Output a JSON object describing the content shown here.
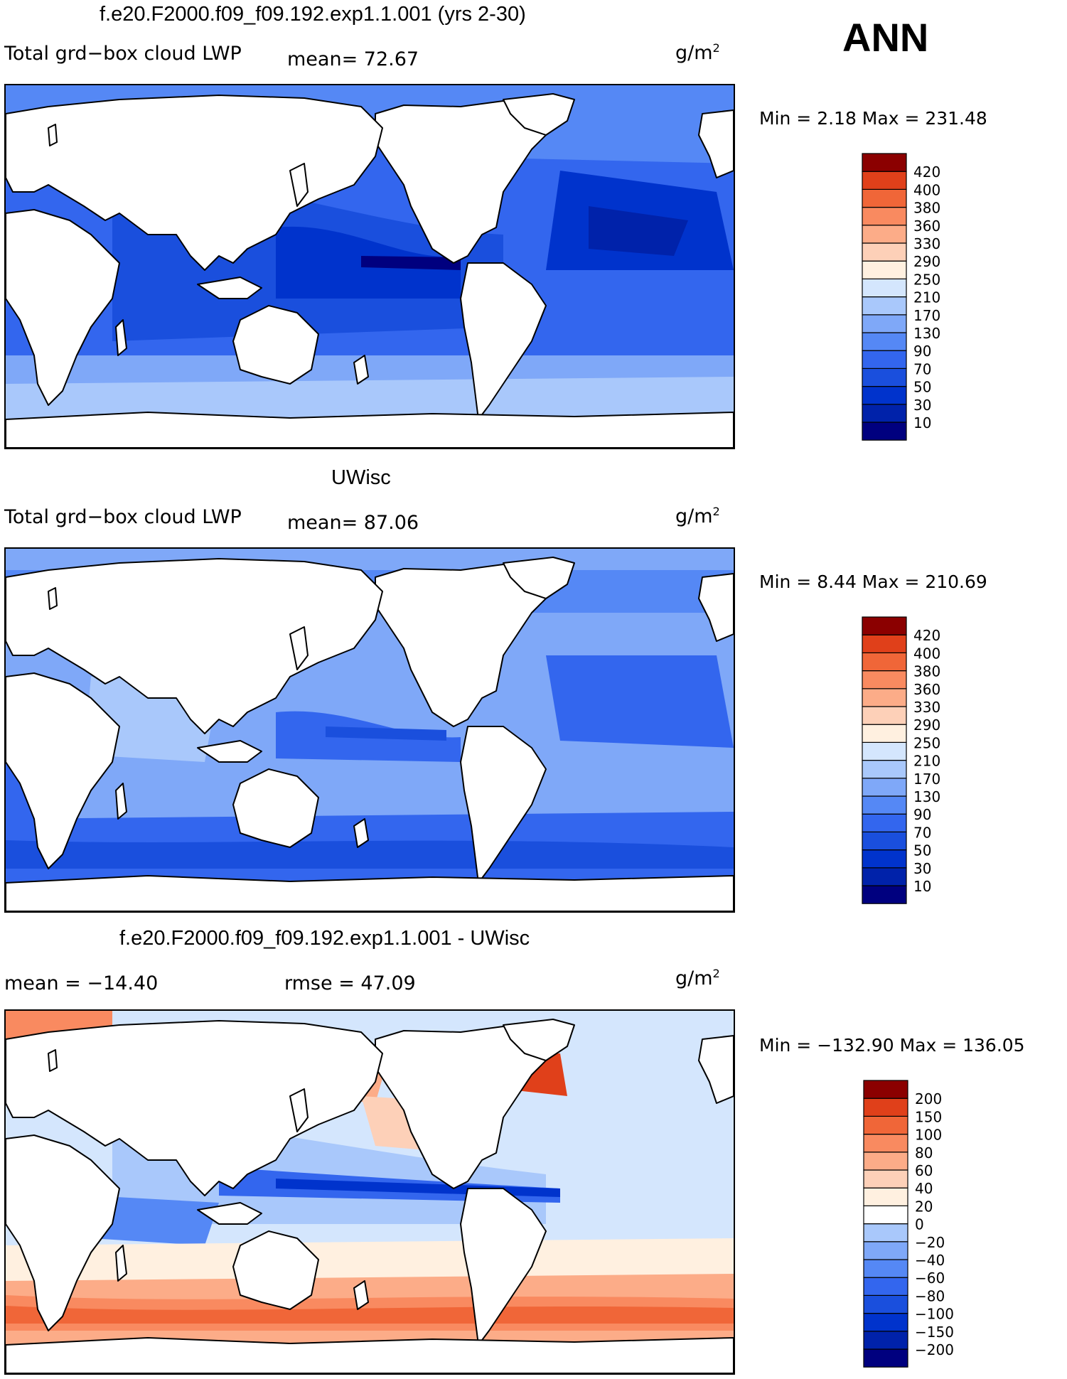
{
  "season": "ANN",
  "colors": {
    "seq": [
      "#00007f",
      "#0022aa",
      "#0033cc",
      "#1a4fdd",
      "#3366ee",
      "#5588f5",
      "#7fa8f8",
      "#a9c8fb",
      "#d4e6fd",
      "#fff0e0",
      "#fdd0b8",
      "#fcac88",
      "#f98a60",
      "#f06638",
      "#e0401a",
      "#c02008",
      "#8b0000"
    ],
    "land": "#ffffff",
    "coast": "#000000"
  },
  "panels": [
    {
      "title": "f.e20.F2000.f09_f09.192.exp1.1.001 (yrs 2-30)",
      "variable": "Total grd−box cloud LWP",
      "stat": "mean=   72.67",
      "units": "g/m",
      "units_sup": "2",
      "minmax": "Min =    2.18 Max = 231.48"
    },
    {
      "title": "UWisc",
      "variable": "Total grd−box cloud LWP",
      "stat": "mean=   87.06",
      "units": "g/m",
      "units_sup": "2",
      "minmax": "Min =    8.44 Max = 210.69"
    },
    {
      "title": "f.e20.F2000.f09_f09.192.exp1.1.001 - UWisc",
      "mean": "mean = −14.40",
      "rmse": "rmse =   47.09",
      "units": "g/m",
      "units_sup": "2",
      "minmax": "Min = −132.90 Max = 136.05"
    }
  ],
  "chart_data": [
    {
      "type": "heatmap",
      "title": "f.e20.F2000.f09_f09.192.exp1.1.001 (yrs 2-30)",
      "variable": "Total grd-box cloud LWP",
      "units": "g/m2",
      "mean": 72.67,
      "min": 2.18,
      "max": 231.48,
      "colorbar_levels": [
        "10",
        "30",
        "50",
        "70",
        "90",
        "130",
        "170",
        "210",
        "250",
        "290",
        "330",
        "360",
        "380",
        "400",
        "420"
      ]
    },
    {
      "type": "heatmap",
      "title": "UWisc",
      "variable": "Total grd-box cloud LWP",
      "units": "g/m2",
      "mean": 87.06,
      "min": 8.44,
      "max": 210.69,
      "colorbar_levels": [
        "10",
        "30",
        "50",
        "70",
        "90",
        "130",
        "170",
        "210",
        "250",
        "290",
        "330",
        "360",
        "380",
        "400",
        "420"
      ]
    },
    {
      "type": "heatmap",
      "title": "f.e20.F2000.f09_f09.192.exp1.1.001 - UWisc",
      "units": "g/m2",
      "mean": -14.4,
      "rmse": 47.09,
      "min": -132.9,
      "max": 136.05,
      "colorbar_levels": [
        "−200",
        "−150",
        "−100",
        "−80",
        "−60",
        "−40",
        "−20",
        "0",
        "20",
        "40",
        "60",
        "80",
        "100",
        "150",
        "200"
      ]
    }
  ]
}
